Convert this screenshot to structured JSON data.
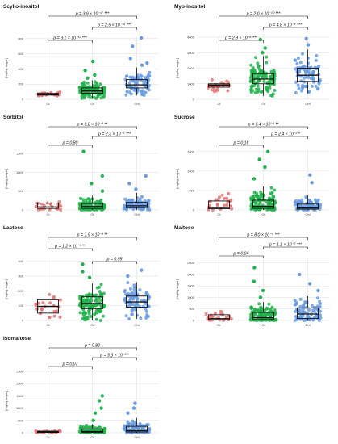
{
  "figure": {
    "group_colors": {
      "Ct": "#e57373",
      "Ot": "#22b14c",
      "Ohl": "#6a9be0"
    },
    "box_color": "#111111",
    "grid_color": "#dcdcdc"
  },
  "chart_data": [
    {
      "type": "box",
      "title": "Scyllo-inositol",
      "ylabel": "[mg/kg sugar]",
      "categories": [
        "Ct",
        "Ot",
        "Ohl"
      ],
      "ylim": [
        0,
        820
      ],
      "yticks": [
        0,
        200,
        400,
        600,
        800
      ],
      "boxes": [
        {
          "group": "Ct",
          "min": 40,
          "q1": 55,
          "median": 65,
          "q3": 78,
          "max": 100,
          "outliers": []
        },
        {
          "group": "Ot",
          "min": 10,
          "q1": 80,
          "median": 110,
          "q3": 150,
          "max": 250,
          "outliers": [
            280,
            320,
            380,
            500
          ]
        },
        {
          "group": "Ohl",
          "min": 50,
          "q1": 150,
          "median": 190,
          "q3": 260,
          "max": 420,
          "outliers": [
            450,
            480,
            540,
            700,
            810
          ]
        }
      ],
      "comparisons": [
        {
          "pair": [
            "Ct",
            "Ohl"
          ],
          "label": "p = 3.9 × 10⁻¹⁷ ***"
        },
        {
          "pair": [
            "Ot",
            "Ohl"
          ],
          "label": "p = 2.5 × 10⁻¹⁶ ***"
        },
        {
          "pair": [
            "Ct",
            "Ot"
          ],
          "label": "p = 3.1 × 10⁻¹² ***"
        }
      ]
    },
    {
      "type": "box",
      "title": "Myo-inositol",
      "ylabel": "[mg/kg sugar]",
      "categories": [
        "Ct",
        "Ot",
        "Ohl"
      ],
      "ylim": [
        0,
        4000
      ],
      "yticks": [
        0,
        1000,
        2000,
        3000,
        4000
      ],
      "boxes": [
        {
          "group": "Ct",
          "min": 500,
          "q1": 780,
          "median": 920,
          "q3": 1000,
          "max": 1300,
          "outliers": []
        },
        {
          "group": "Ot",
          "min": 200,
          "q1": 1000,
          "median": 1300,
          "q3": 1650,
          "max": 2800,
          "outliers": [
            3000,
            3300,
            3850
          ]
        },
        {
          "group": "Ohl",
          "min": 400,
          "q1": 1150,
          "median": 1550,
          "q3": 2000,
          "max": 3200,
          "outliers": [
            3500,
            3900
          ]
        }
      ],
      "comparisons": [
        {
          "pair": [
            "Ct",
            "Ohl"
          ],
          "label": "p = 2.0 × 10⁻¹⁰ ***"
        },
        {
          "pair": [
            "Ot",
            "Ohl"
          ],
          "label": "p = 4.8 × 10⁻⁸ ***"
        },
        {
          "pair": [
            "Ct",
            "Ot"
          ],
          "label": "p = 2.9 × 10⁻⁶ ***"
        }
      ]
    },
    {
      "type": "box",
      "title": "Sorbitol",
      "ylabel": "[mg/kg sugar]",
      "categories": [
        "Ct",
        "Ot",
        "Ohl"
      ],
      "ylim": [
        0,
        1650
      ],
      "yticks": [
        0,
        500,
        1000,
        1500
      ],
      "boxes": [
        {
          "group": "Ct",
          "min": 0,
          "q1": 40,
          "median": 80,
          "q3": 180,
          "max": 300,
          "outliers": []
        },
        {
          "group": "Ot",
          "min": 0,
          "q1": 40,
          "median": 90,
          "q3": 170,
          "max": 380,
          "outliers": [
            500,
            700,
            900,
            1550
          ]
        },
        {
          "group": "Ohl",
          "min": 0,
          "q1": 60,
          "median": 110,
          "q3": 200,
          "max": 450,
          "outliers": [
            550,
            700,
            900
          ]
        }
      ],
      "comparisons": [
        {
          "pair": [
            "Ct",
            "Ohl"
          ],
          "label": "p = 6.2 × 10⁻³ **"
        },
        {
          "pair": [
            "Ot",
            "Ohl"
          ],
          "label": "p = 2.3 × 10⁻⁶ ***"
        },
        {
          "pair": [
            "Ct",
            "Ot"
          ],
          "label": "p = 0.80"
        }
      ]
    },
    {
      "type": "box",
      "title": "Sucrose",
      "ylabel": "[mg/kg sugar]",
      "categories": [
        "Ct",
        "Ot",
        "Ohl"
      ],
      "ylim": [
        0,
        1600
      ],
      "yticks": [
        0,
        500,
        1000,
        1500
      ],
      "boxes": [
        {
          "group": "Ct",
          "min": 0,
          "q1": 30,
          "median": 60,
          "q3": 230,
          "max": 450,
          "outliers": []
        },
        {
          "group": "Ot",
          "min": 0,
          "q1": 40,
          "median": 90,
          "q3": 250,
          "max": 600,
          "outliers": [
            800,
            1100,
            1300,
            1500
          ]
        },
        {
          "group": "Ohl",
          "min": 0,
          "q1": 20,
          "median": 50,
          "q3": 150,
          "max": 380,
          "outliers": [
            700,
            900
          ]
        }
      ],
      "comparisons": [
        {
          "pair": [
            "Ct",
            "Ohl"
          ],
          "label": "p = 6.4 × 10⁻³ **"
        },
        {
          "pair": [
            "Ot",
            "Ohl"
          ],
          "label": "p = 2.4 × 10⁻² *"
        },
        {
          "pair": [
            "Ct",
            "Ot"
          ],
          "label": "p = 0.16"
        }
      ]
    },
    {
      "type": "box",
      "title": "Lactose",
      "ylabel": "[mg/kg sugar]",
      "categories": [
        "Ct",
        "Ot",
        "Ohl"
      ],
      "ylim": [
        0,
        420
      ],
      "yticks": [
        0,
        100,
        200,
        300,
        400
      ],
      "boxes": [
        {
          "group": "Ct",
          "min": 20,
          "q1": 50,
          "median": 95,
          "q3": 140,
          "max": 200,
          "outliers": []
        },
        {
          "group": "Ot",
          "min": 0,
          "q1": 80,
          "median": 115,
          "q3": 160,
          "max": 250,
          "outliers": [
            290,
            330,
            380
          ]
        },
        {
          "group": "Ohl",
          "min": 10,
          "q1": 90,
          "median": 125,
          "q3": 165,
          "max": 260,
          "outliers": [
            300,
            340
          ]
        }
      ],
      "comparisons": [
        {
          "pair": [
            "Ct",
            "Ohl"
          ],
          "label": "p = 1.9 × 10⁻³ **"
        },
        {
          "pair": [
            "Ct",
            "Ot"
          ],
          "label": "p = 1.2 × 10⁻³ **"
        },
        {
          "pair": [
            "Ot",
            "Ohl"
          ],
          "label": "p = 0.95"
        }
      ]
    },
    {
      "type": "box",
      "title": "Maltose",
      "ylabel": "[mg/kg sugar]",
      "categories": [
        "Ct",
        "Ot",
        "Ohl"
      ],
      "ylim": [
        0,
        2700
      ],
      "yticks": [
        0,
        500,
        1000,
        1500,
        2000,
        2500
      ],
      "boxes": [
        {
          "group": "Ct",
          "min": 0,
          "q1": 30,
          "median": 80,
          "q3": 250,
          "max": 450,
          "outliers": []
        },
        {
          "group": "Ot",
          "min": 0,
          "q1": 40,
          "median": 120,
          "q3": 350,
          "max": 800,
          "outliers": [
            1000,
            1300,
            1700,
            2300
          ]
        },
        {
          "group": "Ohl",
          "min": 0,
          "q1": 90,
          "median": 280,
          "q3": 550,
          "max": 1050,
          "outliers": [
            1300,
            1600,
            2000
          ]
        }
      ],
      "comparisons": [
        {
          "pair": [
            "Ct",
            "Ohl"
          ],
          "label": "p = 8.0 × 10⁻⁴ ***"
        },
        {
          "pair": [
            "Ot",
            "Ohl"
          ],
          "label": "p = 1.1 × 10⁻⁷ ***"
        },
        {
          "pair": [
            "Ct",
            "Ot"
          ],
          "label": "p = 0.84"
        }
      ]
    },
    {
      "type": "box",
      "title": "Isomaltose",
      "ylabel": "[mg/kg sugar]",
      "categories": [
        "Ct",
        "Ot",
        "Ohl"
      ],
      "ylim": [
        0,
        2600
      ],
      "yticks": [
        0,
        500,
        1000,
        1500,
        2000,
        2500
      ],
      "boxes": [
        {
          "group": "Ct",
          "min": 0,
          "q1": 15,
          "median": 30,
          "q3": 60,
          "max": 110,
          "outliers": []
        },
        {
          "group": "Ot",
          "min": 0,
          "q1": 20,
          "median": 50,
          "q3": 150,
          "max": 350,
          "outliers": [
            500,
            800,
            1000,
            1300,
            1500
          ]
        },
        {
          "group": "Ohl",
          "min": 0,
          "q1": 30,
          "median": 80,
          "q3": 260,
          "max": 600,
          "outliers": [
            800,
            1000,
            1200
          ]
        }
      ],
      "comparisons": [
        {
          "pair": [
            "Ct",
            "Ohl"
          ],
          "label": "p = 0.82"
        },
        {
          "pair": [
            "Ot",
            "Ohl"
          ],
          "label": "p = 3.3 × 10⁻² *"
        },
        {
          "pair": [
            "Ct",
            "Ot"
          ],
          "label": "p = 0.07"
        }
      ]
    }
  ]
}
